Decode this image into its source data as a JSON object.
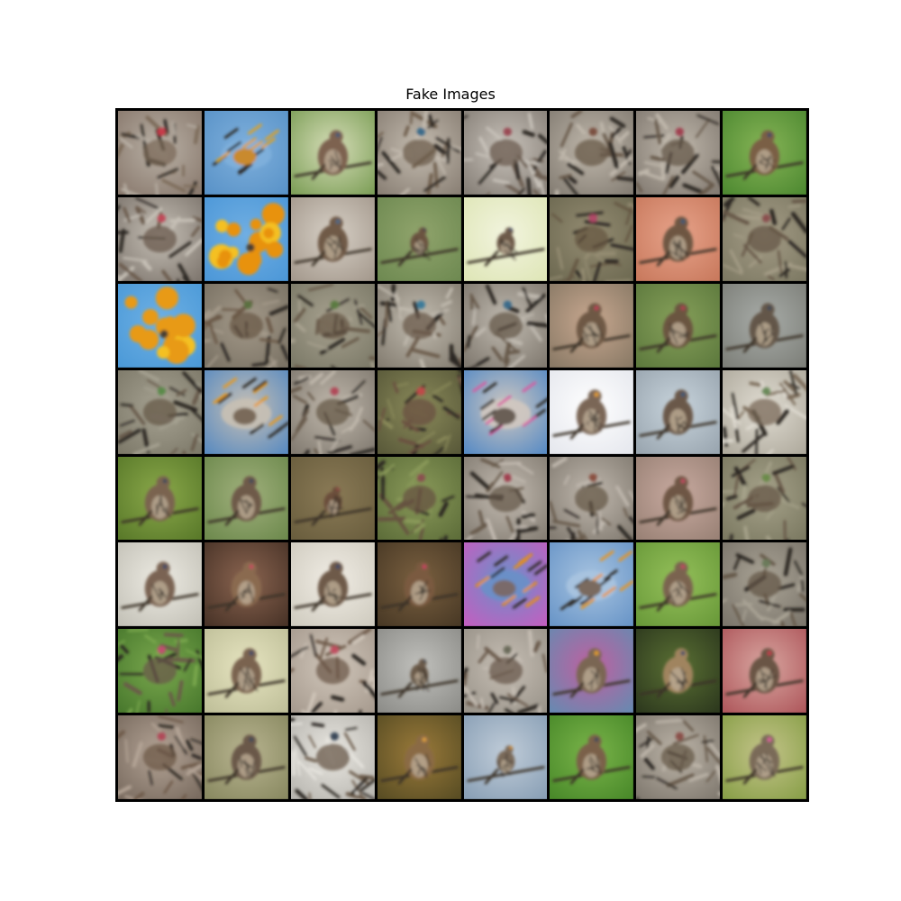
{
  "figure": {
    "title": "Fake Images"
  },
  "grid": {
    "rows": 8,
    "cols": 8,
    "tiles": [
      {
        "bg": "#8a7a6e",
        "mid": "#b9b1a6",
        "accent": "#c73a4a",
        "bird": "#7b6a58",
        "style": "clutter"
      },
      {
        "bg": "#5a93c8",
        "mid": "#7fb0dc",
        "accent": "#e0a020",
        "bird": "#c98a2e",
        "style": "streak"
      },
      {
        "bg": "#7fa05a",
        "mid": "#d6ddb8",
        "accent": "#3c5a7a",
        "bird": "#7d6250",
        "style": "perch"
      },
      {
        "bg": "#8b8176",
        "mid": "#c4bcb0",
        "accent": "#3a6a8a",
        "bird": "#6e5d4c",
        "style": "clutter"
      },
      {
        "bg": "#878078",
        "mid": "#c8c2ba",
        "accent": "#9a4a52",
        "bird": "#6b5c4f",
        "style": "clutter"
      },
      {
        "bg": "#857e74",
        "mid": "#c0b8ac",
        "accent": "#7a5040",
        "bird": "#675848",
        "style": "clutter"
      },
      {
        "bg": "#847c73",
        "mid": "#bfb7ab",
        "accent": "#a04050",
        "bird": "#66584a",
        "style": "clutter"
      },
      {
        "bg": "#4f8a32",
        "mid": "#86b456",
        "accent": "#3a4a6a",
        "bird": "#7a5e44",
        "style": "perch"
      },
      {
        "bg": "#807870",
        "mid": "#c6c0b6",
        "accent": "#c04858",
        "bird": "#6a5a4c",
        "style": "clutter"
      },
      {
        "bg": "#4d98d8",
        "mid": "#70aee2",
        "accent": "#f09a10",
        "bird": "#e8920e",
        "style": "blob"
      },
      {
        "bg": "#a59a8e",
        "mid": "#d7d0c6",
        "accent": "#4a6a8a",
        "bird": "#6f5a47",
        "style": "perch"
      },
      {
        "bg": "#6f8a52",
        "mid": "#90a46c",
        "accent": "#3a4050",
        "bird": "#6a5340",
        "style": "small"
      },
      {
        "bg": "#dfe6b8",
        "mid": "#f2f4de",
        "accent": "#3a5a7a",
        "bird": "#6d5a48",
        "style": "small"
      },
      {
        "bg": "#6e6a52",
        "mid": "#948c72",
        "accent": "#b04868",
        "bird": "#655642",
        "style": "clutter"
      },
      {
        "bg": "#c97a5e",
        "mid": "#e7a38a",
        "accent": "#3a5a78",
        "bird": "#6e5642",
        "style": "perch"
      },
      {
        "bg": "#7e7a64",
        "mid": "#a49c86",
        "accent": "#8a5050",
        "bird": "#665746",
        "style": "clutter"
      },
      {
        "bg": "#4c9ad8",
        "mid": "#6eb0e4",
        "accent": "#f0a414",
        "bird": "#e89a16",
        "style": "blob"
      },
      {
        "bg": "#7a7264",
        "mid": "#a49a8a",
        "accent": "#5a7040",
        "bird": "#6a5846",
        "style": "clutter"
      },
      {
        "bg": "#7c7a68",
        "mid": "#a8a290",
        "accent": "#5a7a40",
        "bird": "#685a48",
        "style": "clutter"
      },
      {
        "bg": "#857e72",
        "mid": "#c2bcb0",
        "accent": "#3a7a9a",
        "bird": "#6a5a4a",
        "style": "clutter"
      },
      {
        "bg": "#817a70",
        "mid": "#c0bab0",
        "accent": "#3a6a8a",
        "bird": "#66584a",
        "style": "clutter"
      },
      {
        "bg": "#8a7a66",
        "mid": "#c8a890",
        "accent": "#c03a58",
        "bird": "#6e5844",
        "style": "perch"
      },
      {
        "bg": "#5e7a3e",
        "mid": "#86a05a",
        "accent": "#b04050",
        "bird": "#6a5440",
        "style": "perch"
      },
      {
        "bg": "#7e807a",
        "mid": "#a8aca8",
        "accent": "#3a4a5a",
        "bird": "#645648",
        "style": "perch"
      },
      {
        "bg": "#7e7a6a",
        "mid": "#a6a292",
        "accent": "#5a8a4a",
        "bird": "#665848",
        "style": "clutter"
      },
      {
        "bg": "#5c8cc0",
        "mid": "#c8c0b4",
        "accent": "#e89a20",
        "bird": "#7a6a5a",
        "style": "streak"
      },
      {
        "bg": "#837c72",
        "mid": "#c0b8ac",
        "accent": "#b04858",
        "bird": "#665848",
        "style": "clutter"
      },
      {
        "bg": "#5a5a3a",
        "mid": "#8a8a5a",
        "accent": "#c04848",
        "bird": "#6a5040",
        "style": "clutter"
      },
      {
        "bg": "#5a8cc4",
        "mid": "#d0c8c0",
        "accent": "#d85aa0",
        "bird": "#6a5e56",
        "style": "streak"
      },
      {
        "bg": "#e6e8ee",
        "mid": "#ffffff",
        "accent": "#e8a030",
        "bird": "#7a6656",
        "style": "perch"
      },
      {
        "bg": "#9aa6b0",
        "mid": "#c8d4dc",
        "accent": "#3a5a7a",
        "bird": "#6a5848",
        "style": "perch"
      },
      {
        "bg": "#b0ab9e",
        "mid": "#e0dcd2",
        "accent": "#6a8a5a",
        "bird": "#7a6a58",
        "style": "clutter"
      },
      {
        "bg": "#5a7a2a",
        "mid": "#8aa84a",
        "accent": "#3a4a5a",
        "bird": "#7a6450",
        "style": "perch"
      },
      {
        "bg": "#6e8a4e",
        "mid": "#a0b07c",
        "accent": "#3a4a5a",
        "bird": "#6e5a48",
        "style": "perch"
      },
      {
        "bg": "#6a5e3e",
        "mid": "#8a7a56",
        "accent": "#a04848",
        "bird": "#6a4e3a",
        "style": "small"
      },
      {
        "bg": "#5e6e3a",
        "mid": "#8a9a5a",
        "accent": "#8a5050",
        "bird": "#665240",
        "style": "clutter"
      },
      {
        "bg": "#857e74",
        "mid": "#c4bcb2",
        "accent": "#a04050",
        "bird": "#66584a",
        "style": "clutter"
      },
      {
        "bg": "#837c72",
        "mid": "#c0b8ae",
        "accent": "#8a5040",
        "bird": "#665848",
        "style": "clutter"
      },
      {
        "bg": "#9a8276",
        "mid": "#c8aaa0",
        "accent": "#c04860",
        "bird": "#6e5644",
        "style": "perch"
      },
      {
        "bg": "#7c7a62",
        "mid": "#a6a28a",
        "accent": "#6a8a4a",
        "bird": "#665646",
        "style": "clutter"
      },
      {
        "bg": "#c4c2b8",
        "mid": "#eceae2",
        "accent": "#3a4a6a",
        "bird": "#7a6452",
        "style": "perch"
      },
      {
        "bg": "#4a3428",
        "mid": "#8a6450",
        "accent": "#c84860",
        "bird": "#8a6a50",
        "style": "perch"
      },
      {
        "bg": "#d0ccc0",
        "mid": "#f0ece4",
        "accent": "#3a4a6a",
        "bird": "#6e5a48",
        "style": "perch"
      },
      {
        "bg": "#4a3a26",
        "mid": "#7a6040",
        "accent": "#c84060",
        "bird": "#7a5a40",
        "style": "perch"
      },
      {
        "bg": "#c060c0",
        "mid": "#6a90c8",
        "accent": "#e8900e",
        "bird": "#7a6a6a",
        "style": "streak"
      },
      {
        "bg": "#6a96c8",
        "mid": "#a8c4e0",
        "accent": "#e89420",
        "bird": "#7a6a5e",
        "style": "streak"
      },
      {
        "bg": "#6a9a3a",
        "mid": "#94c05a",
        "accent": "#c04860",
        "bird": "#7a6450",
        "style": "perch"
      },
      {
        "bg": "#7c766c",
        "mid": "#aaa496",
        "accent": "#6a7a5a",
        "bird": "#645646",
        "style": "clutter"
      },
      {
        "bg": "#4a7a2e",
        "mid": "#7aa84e",
        "accent": "#c05070",
        "bird": "#6a5a4a",
        "style": "clutter"
      },
      {
        "bg": "#c0c09a",
        "mid": "#e6e4c0",
        "accent": "#3a4a6a",
        "bird": "#7a6450",
        "style": "perch"
      },
      {
        "bg": "#a89c90",
        "mid": "#d0c6ba",
        "accent": "#c05060",
        "bird": "#6e5a4a",
        "style": "clutter"
      },
      {
        "bg": "#8e8e8a",
        "mid": "#c0c0bc",
        "accent": "#3a4a5a",
        "bird": "#6a5a4a",
        "style": "small"
      },
      {
        "bg": "#9a948a",
        "mid": "#c6beb4",
        "accent": "#6a6a5a",
        "bird": "#6a5a4c",
        "style": "clutter"
      },
      {
        "bg": "#6a88b0",
        "mid": "#c060a0",
        "accent": "#e8a020",
        "bird": "#7a6652",
        "style": "perch"
      },
      {
        "bg": "#2e3a1e",
        "mid": "#5a7034",
        "accent": "#3a4a6a",
        "bird": "#a0845e",
        "style": "perch"
      },
      {
        "bg": "#b05a5e",
        "mid": "#d8a6a0",
        "accent": "#c8384e",
        "bird": "#6a5444",
        "style": "perch"
      },
      {
        "bg": "#7a6c60",
        "mid": "#b4a496",
        "accent": "#b04858",
        "bird": "#6e5a48",
        "style": "clutter"
      },
      {
        "bg": "#8a8a62",
        "mid": "#b8b490",
        "accent": "#3a4a5a",
        "bird": "#6a5848",
        "style": "perch"
      },
      {
        "bg": "#b8b6b0",
        "mid": "#e8e6e0",
        "accent": "#3a4a5a",
        "bird": "#6a5a4a",
        "style": "clutter"
      },
      {
        "bg": "#5a4e24",
        "mid": "#9a7a3a",
        "accent": "#e0a040",
        "bird": "#8a6a44",
        "style": "perch"
      },
      {
        "bg": "#8aa0b6",
        "mid": "#c0ccd8",
        "accent": "#e89a20",
        "bird": "#7a6a5a",
        "style": "small"
      },
      {
        "bg": "#4a8a2a",
        "mid": "#7ab44a",
        "accent": "#3a4a5a",
        "bird": "#7a6048",
        "style": "perch"
      },
      {
        "bg": "#817a70",
        "mid": "#bcb4a8",
        "accent": "#8a5048",
        "bird": "#665848",
        "style": "clutter"
      },
      {
        "bg": "#8aa04a",
        "mid": "#c4c48a",
        "accent": "#e060a0",
        "bird": "#7a6a58",
        "style": "perch"
      }
    ]
  }
}
